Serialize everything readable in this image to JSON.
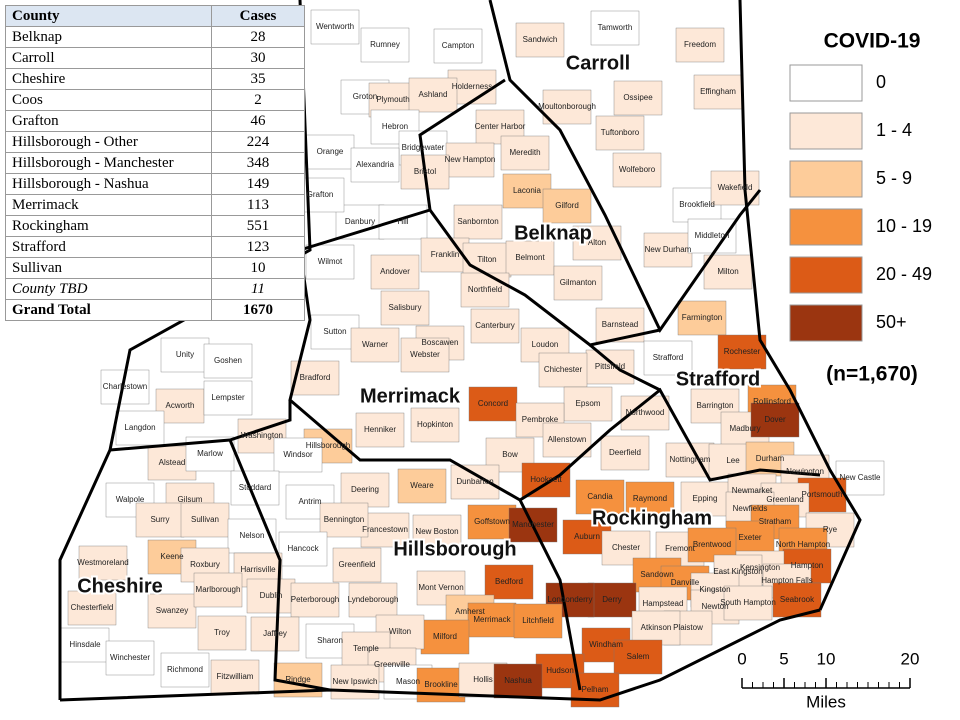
{
  "table": {
    "header": [
      "County",
      "Cases"
    ],
    "rows": [
      {
        "county": "Belknap",
        "cases": "28"
      },
      {
        "county": "Carroll",
        "cases": "30"
      },
      {
        "county": "Cheshire",
        "cases": "35"
      },
      {
        "county": "Coos",
        "cases": "2"
      },
      {
        "county": "Grafton",
        "cases": "46"
      },
      {
        "county": "Hillsborough - Other",
        "cases": "224"
      },
      {
        "county": "Hillsborough - Manchester",
        "cases": "348"
      },
      {
        "county": "Hillsborough - Nashua",
        "cases": "149"
      },
      {
        "county": "Merrimack",
        "cases": "113"
      },
      {
        "county": "Rockingham",
        "cases": "551"
      },
      {
        "county": "Strafford",
        "cases": "123"
      },
      {
        "county": "Sullivan",
        "cases": "10"
      },
      {
        "county": "County TBD",
        "cases": "11",
        "style": "italic"
      },
      {
        "county": "Grand Total",
        "cases": "1670",
        "style": "bold"
      }
    ]
  },
  "legend": {
    "title": "COVID-19",
    "bins": [
      {
        "label": "0",
        "color": "#ffffff"
      },
      {
        "label": "1 - 4",
        "color": "#fde8d8"
      },
      {
        "label": "5 - 9",
        "color": "#fdcc9a"
      },
      {
        "label": "10 - 19",
        "color": "#f5913e"
      },
      {
        "label": "20 - 49",
        "color": "#dc5b17"
      },
      {
        "label": "50+",
        "color": "#9b3510"
      }
    ],
    "note": "(n=1,670)"
  },
  "scale": {
    "ticks": [
      0,
      5,
      10,
      20
    ],
    "unit": "Miles"
  },
  "counties": [
    "Carroll",
    "Belknap",
    "Merrimack",
    "Strafford",
    "Rockingham",
    "Hillsborough",
    "Cheshire"
  ],
  "towns": [
    {
      "name": "Wentworth",
      "bin": 0
    },
    {
      "name": "Rumney",
      "bin": 0
    },
    {
      "name": "Campton",
      "bin": 0
    },
    {
      "name": "Sandwich",
      "bin": 1
    },
    {
      "name": "Tamworth",
      "bin": 0
    },
    {
      "name": "Freedom",
      "bin": 1
    },
    {
      "name": "Holderness",
      "bin": 1
    },
    {
      "name": "Groton",
      "bin": 0
    },
    {
      "name": "Plymouth",
      "bin": 1
    },
    {
      "name": "Ashland",
      "bin": 1
    },
    {
      "name": "Moultonborough",
      "bin": 1
    },
    {
      "name": "Ossipee",
      "bin": 1
    },
    {
      "name": "Effingham",
      "bin": 1
    },
    {
      "name": "Hebron",
      "bin": 0
    },
    {
      "name": "Center Harbor",
      "bin": 1
    },
    {
      "name": "Tuftonboro",
      "bin": 1
    },
    {
      "name": "Orange",
      "bin": 0
    },
    {
      "name": "Bridgewater",
      "bin": 0
    },
    {
      "name": "New Hampton",
      "bin": 1
    },
    {
      "name": "Meredith",
      "bin": 1
    },
    {
      "name": "Wolfeboro",
      "bin": 1
    },
    {
      "name": "Alexandria",
      "bin": 0
    },
    {
      "name": "Bristol",
      "bin": 1
    },
    {
      "name": "Laconia",
      "bin": 2
    },
    {
      "name": "Gilford",
      "bin": 2
    },
    {
      "name": "Brookfield",
      "bin": 0
    },
    {
      "name": "Wakefield",
      "bin": 1
    },
    {
      "name": "Danbury",
      "bin": 0
    },
    {
      "name": "Hill",
      "bin": 0
    },
    {
      "name": "Sanbornton",
      "bin": 1
    },
    {
      "name": "Alton",
      "bin": 1
    },
    {
      "name": "New Durham",
      "bin": 1
    },
    {
      "name": "Middleton",
      "bin": 0
    },
    {
      "name": "Wilmot",
      "bin": 0
    },
    {
      "name": "Franklin",
      "bin": 1
    },
    {
      "name": "Tilton",
      "bin": 1
    },
    {
      "name": "Belmont",
      "bin": 1
    },
    {
      "name": "Milton",
      "bin": 1
    },
    {
      "name": "Andover",
      "bin": 1
    },
    {
      "name": "Northfield",
      "bin": 1
    },
    {
      "name": "Gilmanton",
      "bin": 1
    },
    {
      "name": "Salisbury",
      "bin": 1
    },
    {
      "name": "Farmington",
      "bin": 2
    },
    {
      "name": "Sutton",
      "bin": 0
    },
    {
      "name": "Boscawen",
      "bin": 1
    },
    {
      "name": "Canterbury",
      "bin": 1
    },
    {
      "name": "Barnstead",
      "bin": 1
    },
    {
      "name": "Loudon",
      "bin": 1
    },
    {
      "name": "Rochester",
      "bin": 4
    },
    {
      "name": "Warner",
      "bin": 1
    },
    {
      "name": "Webster",
      "bin": 1
    },
    {
      "name": "Strafford",
      "bin": 0
    },
    {
      "name": "Pittsfield",
      "bin": 1
    },
    {
      "name": "Chichester",
      "bin": 1
    },
    {
      "name": "Bradford",
      "bin": 1
    },
    {
      "name": "Unity",
      "bin": 0
    },
    {
      "name": "Goshen",
      "bin": 0
    },
    {
      "name": "Charlestown",
      "bin": 0
    },
    {
      "name": "Acworth",
      "bin": 1
    },
    {
      "name": "Lempster",
      "bin": 0
    },
    {
      "name": "Concord",
      "bin": 4
    },
    {
      "name": "Epsom",
      "bin": 1
    },
    {
      "name": "Northwood",
      "bin": 1
    },
    {
      "name": "Barrington",
      "bin": 1
    },
    {
      "name": "Rollinsford",
      "bin": 3
    },
    {
      "name": "Henniker",
      "bin": 1
    },
    {
      "name": "Hopkinton",
      "bin": 1
    },
    {
      "name": "Pembroke",
      "bin": 1
    },
    {
      "name": "Madbury",
      "bin": 1
    },
    {
      "name": "Dover",
      "bin": 5
    },
    {
      "name": "Washington",
      "bin": 1
    },
    {
      "name": "Langdon",
      "bin": 0
    },
    {
      "name": "Hillsborough",
      "bin": 2
    },
    {
      "name": "Bow",
      "bin": 1
    },
    {
      "name": "Allenstown",
      "bin": 1
    },
    {
      "name": "Deerfield",
      "bin": 1
    },
    {
      "name": "Nottingham",
      "bin": 1
    },
    {
      "name": "Lee",
      "bin": 1
    },
    {
      "name": "Durham",
      "bin": 2
    },
    {
      "name": "Alstead",
      "bin": 1
    },
    {
      "name": "Marlow",
      "bin": 0
    },
    {
      "name": "Windsor",
      "bin": 0
    },
    {
      "name": "Hooksett",
      "bin": 4
    },
    {
      "name": "Newington",
      "bin": 1
    },
    {
      "name": "New Castle",
      "bin": 0
    },
    {
      "name": "Portsmouth",
      "bin": 4
    },
    {
      "name": "Walpole",
      "bin": 0
    },
    {
      "name": "Stoddard",
      "bin": 0
    },
    {
      "name": "Antrim",
      "bin": 0
    },
    {
      "name": "Deering",
      "bin": 1
    },
    {
      "name": "Weare",
      "bin": 2
    },
    {
      "name": "Dunbarton",
      "bin": 1
    },
    {
      "name": "Candia",
      "bin": 3
    },
    {
      "name": "Raymond",
      "bin": 3
    },
    {
      "name": "Epping",
      "bin": 1
    },
    {
      "name": "Newmarket",
      "bin": 1
    },
    {
      "name": "Greenland",
      "bin": 1
    },
    {
      "name": "Gilsum",
      "bin": 1
    },
    {
      "name": "Surry",
      "bin": 1
    },
    {
      "name": "Sullivan",
      "bin": 1
    },
    {
      "name": "Goffstown",
      "bin": 3
    },
    {
      "name": "Newfields",
      "bin": 1
    },
    {
      "name": "Stratham",
      "bin": 3
    },
    {
      "name": "Rye",
      "bin": 1
    },
    {
      "name": "Francestown",
      "bin": 1
    },
    {
      "name": "New Boston",
      "bin": 1
    },
    {
      "name": "Manchester",
      "bin": 5
    },
    {
      "name": "Auburn",
      "bin": 4
    },
    {
      "name": "Fremont",
      "bin": 1
    },
    {
      "name": "Exeter",
      "bin": 3
    },
    {
      "name": "North Hampton",
      "bin": 3
    },
    {
      "name": "Nelson",
      "bin": 0
    },
    {
      "name": "Bennington",
      "bin": 1
    },
    {
      "name": "Hancock",
      "bin": 0
    },
    {
      "name": "Chester",
      "bin": 1
    },
    {
      "name": "Brentwood",
      "bin": 3
    },
    {
      "name": "Keene",
      "bin": 2
    },
    {
      "name": "Westmoreland",
      "bin": 1
    },
    {
      "name": "Greenfield",
      "bin": 1
    },
    {
      "name": "Hampton",
      "bin": 4
    },
    {
      "name": "Kensington",
      "bin": 1
    },
    {
      "name": "Roxbury",
      "bin": 1
    },
    {
      "name": "Harrisville",
      "bin": 1
    },
    {
      "name": "Sandown",
      "bin": 3
    },
    {
      "name": "Danville",
      "bin": 3
    },
    {
      "name": "East Kingston",
      "bin": 1
    },
    {
      "name": "Hampton Falls",
      "bin": 1
    },
    {
      "name": "Bedford",
      "bin": 4
    },
    {
      "name": "Derry",
      "bin": 5
    },
    {
      "name": "Kingston",
      "bin": 1
    },
    {
      "name": "Seabrook",
      "bin": 4
    },
    {
      "name": "Hampstead",
      "bin": 1
    },
    {
      "name": "Newton",
      "bin": 1
    },
    {
      "name": "South Hampton",
      "bin": 1
    },
    {
      "name": "Chesterfield",
      "bin": 1
    },
    {
      "name": "Swanzey",
      "bin": 1
    },
    {
      "name": "Marlborough",
      "bin": 1
    },
    {
      "name": "Dublin",
      "bin": 1
    },
    {
      "name": "Peterborough",
      "bin": 1
    },
    {
      "name": "Lyndeborough",
      "bin": 1
    },
    {
      "name": "Mont Vernon",
      "bin": 1
    },
    {
      "name": "Amherst",
      "bin": 2
    },
    {
      "name": "Londonderry",
      "bin": 5
    },
    {
      "name": "Merrimack",
      "bin": 3
    },
    {
      "name": "Litchfield",
      "bin": 3
    },
    {
      "name": "Plaistow",
      "bin": 1
    },
    {
      "name": "Atkinson",
      "bin": 1
    },
    {
      "name": "Milford",
      "bin": 3
    },
    {
      "name": "Troy",
      "bin": 1
    },
    {
      "name": "Jaffrey",
      "bin": 1
    },
    {
      "name": "Wilton",
      "bin": 1
    },
    {
      "name": "Windham",
      "bin": 4
    },
    {
      "name": "Salem",
      "bin": 4
    },
    {
      "name": "Sharon",
      "bin": 0
    },
    {
      "name": "Temple",
      "bin": 1
    },
    {
      "name": "Hinsdale",
      "bin": 0
    },
    {
      "name": "Winchester",
      "bin": 0
    },
    {
      "name": "Richmond",
      "bin": 0
    },
    {
      "name": "Greenville",
      "bin": 1
    },
    {
      "name": "Hudson",
      "bin": 4
    },
    {
      "name": "Fitzwilliam",
      "bin": 1
    },
    {
      "name": "Rindge",
      "bin": 2
    },
    {
      "name": "New Ipswich",
      "bin": 1
    },
    {
      "name": "Mason",
      "bin": 0
    },
    {
      "name": "Brookline",
      "bin": 3
    },
    {
      "name": "Hollis",
      "bin": 1
    },
    {
      "name": "Nashua",
      "bin": 5
    },
    {
      "name": "Pelham",
      "bin": 4
    },
    {
      "name": "Grafton",
      "bin": 0
    }
  ]
}
